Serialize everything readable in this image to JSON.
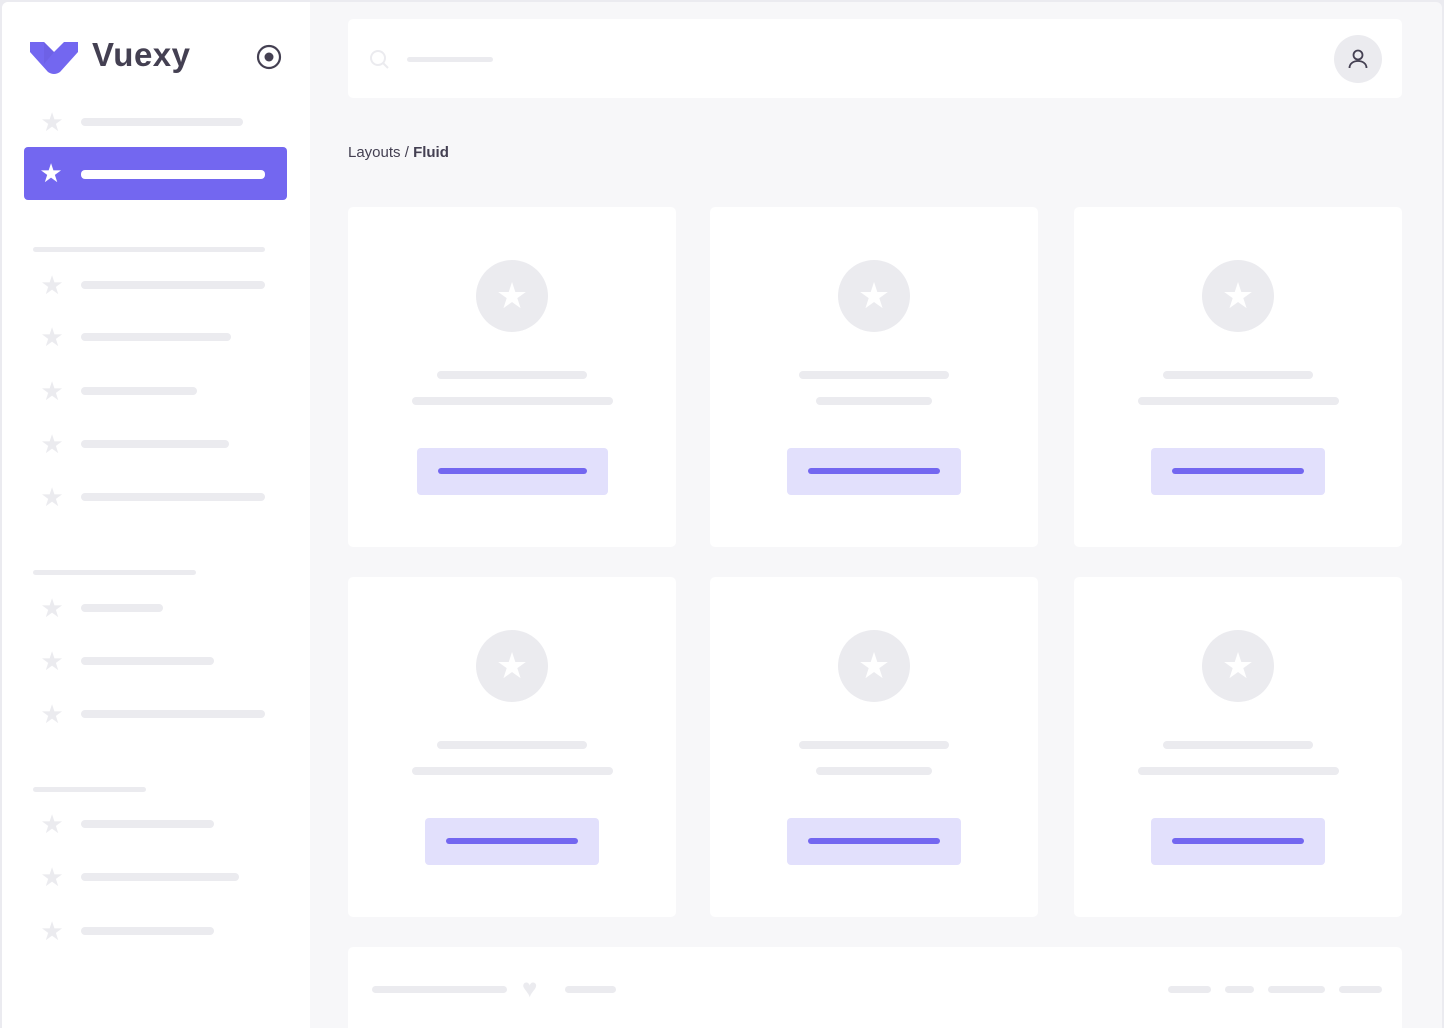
{
  "brand": {
    "name": "Vuexy",
    "color": "#7367f0"
  },
  "icons": {
    "logo": "vuexy-logo-icon",
    "pin": "radio-circle-icon",
    "nav": "star-icon",
    "search": "search-icon",
    "user": "user-icon",
    "footer": "heart-icon"
  },
  "breadcrumb": {
    "parent": "Layouts",
    "separator": " / ",
    "current": "Fluid"
  },
  "colors": {
    "accent": "#7367f0",
    "accent_light": "#e2e0fc",
    "placeholder": "#ebebef",
    "text": "#444052",
    "background": "#f7f7f9"
  }
}
